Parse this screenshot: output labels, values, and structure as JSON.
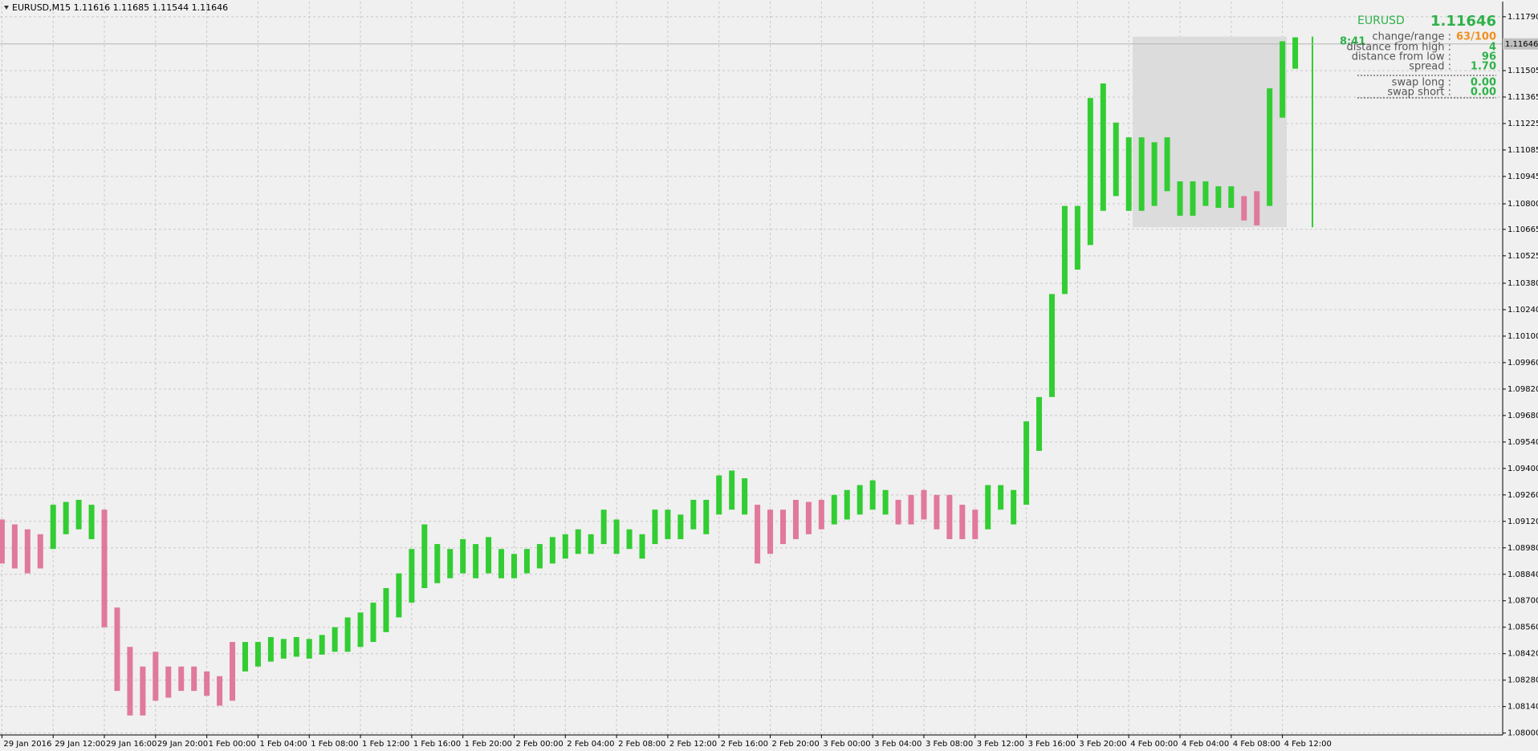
{
  "chart_data": {
    "type": "range-bars",
    "title": "EURUSD,M15  1.11616 1.11685 1.11544 1.11646",
    "series": [
      {
        "color": "#32cd32",
        "high": [
          null,
          null,
          null,
          null,
          1.09208,
          1.09223,
          1.09234,
          1.09208,
          null,
          null,
          null,
          null,
          null,
          null,
          null,
          null,
          null,
          null,
          null,
          1.08482,
          1.08482,
          1.08508,
          1.08498,
          1.08508,
          1.08498,
          1.08519,
          1.0856,
          1.08612,
          1.08638,
          1.0869,
          1.08767,
          1.08845,
          1.08974,
          1.09104,
          1.09,
          1.08974,
          1.09026,
          1.09,
          1.09037,
          1.08974,
          1.08948,
          1.08974,
          1.09,
          1.09037,
          1.09052,
          1.09078,
          1.09052,
          1.09182,
          1.0913,
          1.09078,
          1.09052,
          1.09182,
          1.09182,
          1.09156,
          1.09234,
          1.09234,
          1.09363,
          1.09389,
          1.09348,
          null,
          null,
          null,
          null,
          null,
          null,
          1.0926,
          1.09286,
          1.09312,
          1.09337,
          1.09286,
          null,
          null,
          null,
          null,
          null,
          null,
          null,
          1.09312,
          1.09312,
          1.09286,
          1.09649,
          1.09778,
          1.10323,
          1.10789,
          1.10789,
          1.1136,
          1.11437,
          1.1123,
          1.11152,
          1.11152,
          1.11126,
          1.11152,
          1.10919,
          1.10919,
          1.10919,
          1.10893,
          1.10893,
          null,
          null,
          1.11411,
          1.1166,
          1.11681
        ],
        "low": [
          null,
          null,
          null,
          null,
          1.08974,
          1.09052,
          1.09078,
          1.09026,
          null,
          null,
          null,
          null,
          null,
          null,
          null,
          null,
          null,
          null,
          null,
          1.08326,
          1.08352,
          1.08378,
          1.08394,
          1.08404,
          1.08394,
          1.08415,
          1.0843,
          1.0843,
          1.08456,
          1.08482,
          1.08534,
          1.08612,
          1.0869,
          1.08767,
          1.08793,
          1.08819,
          1.08845,
          1.08819,
          1.08845,
          1.08819,
          1.08819,
          1.08845,
          1.08871,
          1.08897,
          1.08923,
          1.08948,
          1.08948,
          1.09,
          1.08948,
          1.08974,
          1.08923,
          1.09,
          1.09026,
          1.09026,
          1.09078,
          1.09052,
          1.09156,
          1.09182,
          1.09156,
          null,
          null,
          null,
          null,
          null,
          null,
          1.09104,
          1.0913,
          1.09156,
          1.09182,
          1.09156,
          null,
          null,
          null,
          null,
          null,
          null,
          null,
          1.09078,
          1.09182,
          1.09104,
          1.09208,
          1.09493,
          1.09778,
          1.10323,
          1.10452,
          1.10582,
          1.10763,
          1.10841,
          1.10763,
          1.10763,
          1.10789,
          1.10867,
          1.10737,
          1.10737,
          1.10789,
          1.10779,
          1.10779,
          null,
          null,
          1.10789,
          1.11256,
          1.11515
        ]
      },
      {
        "color": "#e0799c",
        "high": [
          1.0913,
          1.09104,
          1.09078,
          1.09052,
          null,
          null,
          null,
          null,
          1.09182,
          1.08664,
          1.08456,
          1.08352,
          1.0843,
          1.08352,
          1.08352,
          1.08352,
          1.08326,
          1.08301,
          1.08482,
          null,
          null,
          null,
          null,
          null,
          null,
          null,
          null,
          null,
          null,
          null,
          null,
          null,
          null,
          null,
          null,
          null,
          null,
          null,
          null,
          null,
          null,
          null,
          null,
          null,
          null,
          null,
          null,
          null,
          null,
          null,
          null,
          null,
          null,
          null,
          null,
          null,
          null,
          null,
          null,
          1.09208,
          1.09182,
          1.09182,
          1.09234,
          1.09223,
          1.09234,
          null,
          null,
          null,
          null,
          null,
          1.09234,
          1.0926,
          1.09286,
          1.0926,
          1.0926,
          1.09208,
          1.09182,
          null,
          null,
          null,
          null,
          null,
          null,
          null,
          null,
          null,
          null,
          null,
          null,
          null,
          null,
          null,
          null,
          null,
          null,
          null,
          null,
          1.10841,
          1.10867,
          null,
          null,
          null
        ],
        "low": [
          1.08897,
          1.08871,
          1.08845,
          1.08871,
          null,
          null,
          null,
          null,
          1.0856,
          1.08223,
          1.08093,
          1.08093,
          1.08171,
          1.08187,
          1.08223,
          1.08223,
          1.08197,
          1.08145,
          1.08171,
          null,
          null,
          null,
          null,
          null,
          null,
          null,
          null,
          null,
          null,
          null,
          null,
          null,
          null,
          null,
          null,
          null,
          null,
          null,
          null,
          null,
          null,
          null,
          null,
          null,
          null,
          null,
          null,
          null,
          null,
          null,
          null,
          null,
          null,
          null,
          null,
          null,
          null,
          null,
          null,
          1.08897,
          1.08948,
          1.09,
          1.09026,
          1.09052,
          1.09078,
          null,
          null,
          null,
          null,
          null,
          1.09104,
          1.09104,
          1.0913,
          1.09078,
          1.09026,
          1.09026,
          1.09026,
          null,
          null,
          null,
          null,
          null,
          null,
          null,
          null,
          null,
          null,
          null,
          null,
          null,
          null,
          null,
          null,
          null,
          null,
          null,
          null,
          1.10712,
          1.10686,
          null,
          null,
          null
        ]
      }
    ],
    "xlim": [
      -0.15,
      117.2
    ],
    "xticks": [
      {
        "value": 0,
        "label": "29 Jan 2016"
      },
      {
        "value": 4,
        "label": "29 Jan 12:00"
      },
      {
        "value": 8,
        "label": "29 Jan 16:00"
      },
      {
        "value": 12,
        "label": "29 Jan 20:00"
      },
      {
        "value": 16,
        "label": "1 Feb 00:00"
      },
      {
        "value": 20,
        "label": "1 Feb 04:00"
      },
      {
        "value": 24,
        "label": "1 Feb 08:00"
      },
      {
        "value": 28,
        "label": "1 Feb 12:00"
      },
      {
        "value": 32,
        "label": "1 Feb 16:00"
      },
      {
        "value": 36,
        "label": "1 Feb 20:00"
      },
      {
        "value": 40,
        "label": "2 Feb 00:00"
      },
      {
        "value": 44,
        "label": "2 Feb 04:00"
      },
      {
        "value": 48,
        "label": "2 Feb 08:00"
      },
      {
        "value": 52,
        "label": "2 Feb 12:00"
      },
      {
        "value": 56,
        "label": "2 Feb 16:00"
      },
      {
        "value": 60,
        "label": "2 Feb 20:00"
      },
      {
        "value": 64,
        "label": "3 Feb 00:00"
      },
      {
        "value": 68,
        "label": "3 Feb 04:00"
      },
      {
        "value": 72,
        "label": "3 Feb 08:00"
      },
      {
        "value": 76,
        "label": "3 Feb 12:00"
      },
      {
        "value": 80,
        "label": "3 Feb 16:00"
      },
      {
        "value": 84,
        "label": "3 Feb 20:00"
      },
      {
        "value": 88,
        "label": "4 Feb 00:00"
      },
      {
        "value": 92,
        "label": "4 Feb 04:00"
      },
      {
        "value": 96,
        "label": "4 Feb 08:00"
      },
      {
        "value": 100,
        "label": "4 Feb 12:00"
      }
    ],
    "ylim": [
      1.0799,
      1.1187
    ],
    "yticks": [
      {
        "value": 1.1179,
        "label": "1.11790"
      },
      {
        "value": 1.11505,
        "label": "1.11505"
      },
      {
        "value": 1.11365,
        "label": "1.11365"
      },
      {
        "value": 1.11225,
        "label": "1.11225"
      },
      {
        "value": 1.11085,
        "label": "1.11085"
      },
      {
        "value": 1.10945,
        "label": "1.10945"
      },
      {
        "value": 1.108,
        "label": "1.10800"
      },
      {
        "value": 1.10665,
        "label": "1.10665"
      },
      {
        "value": 1.10525,
        "label": "1.10525"
      },
      {
        "value": 1.1038,
        "label": "1.10380"
      },
      {
        "value": 1.1024,
        "label": "1.10240"
      },
      {
        "value": 1.101,
        "label": "1.10100"
      },
      {
        "value": 1.0996,
        "label": "1.09960"
      },
      {
        "value": 1.0982,
        "label": "1.09820"
      },
      {
        "value": 1.0968,
        "label": "1.09680"
      },
      {
        "value": 1.0954,
        "label": "1.09540"
      },
      {
        "value": 1.094,
        "label": "1.09400"
      },
      {
        "value": 1.0926,
        "label": "1.09260"
      },
      {
        "value": 1.0912,
        "label": "1.09120"
      },
      {
        "value": 1.0898,
        "label": "1.08980"
      },
      {
        "value": 1.0884,
        "label": "1.08840"
      },
      {
        "value": 1.087,
        "label": "1.08700"
      },
      {
        "value": 1.0856,
        "label": "1.08560"
      },
      {
        "value": 1.0842,
        "label": "1.08420"
      },
      {
        "value": 1.0828,
        "label": "1.08280"
      },
      {
        "value": 1.0814,
        "label": "1.08140"
      },
      {
        "value": 1.08,
        "label": "1.08000"
      }
    ],
    "grid": true,
    "last_price": {
      "value": 1.11646,
      "label": "1.11646"
    },
    "day_range": {
      "high": 1.11685,
      "low": 1.10676
    },
    "timer": "8:41"
  },
  "info_panel": {
    "symbol": "EURUSD",
    "price": "1.11646",
    "rows": [
      [
        "change/range :",
        "63/100"
      ],
      [
        "distance from high :",
        "4"
      ],
      [
        "distance from low :",
        "96"
      ],
      [
        "spread :",
        "1.70"
      ],
      [
        "swap long :",
        "0.00"
      ],
      [
        "swap short :",
        "0.00"
      ]
    ]
  }
}
